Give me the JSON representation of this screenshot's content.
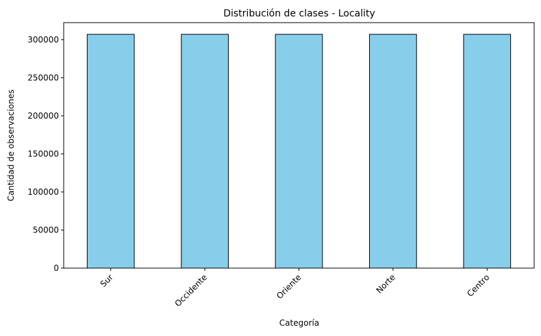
{
  "chart_data": {
    "type": "bar",
    "title": "Distribución de clases - Locality",
    "xlabel": "Categoría",
    "ylabel": "Cantidad de observaciones",
    "categories": [
      "Sur",
      "Occidente",
      "Oriente",
      "Norte",
      "Centro"
    ],
    "values": [
      307000,
      307000,
      307000,
      307000,
      307000
    ],
    "ylim": [
      0,
      322350
    ],
    "yticks": [
      0,
      50000,
      100000,
      150000,
      200000,
      250000,
      300000
    ],
    "bar_color": "#87CEEB",
    "bar_edge_color": "#000000",
    "grid": false,
    "legend": "none"
  }
}
